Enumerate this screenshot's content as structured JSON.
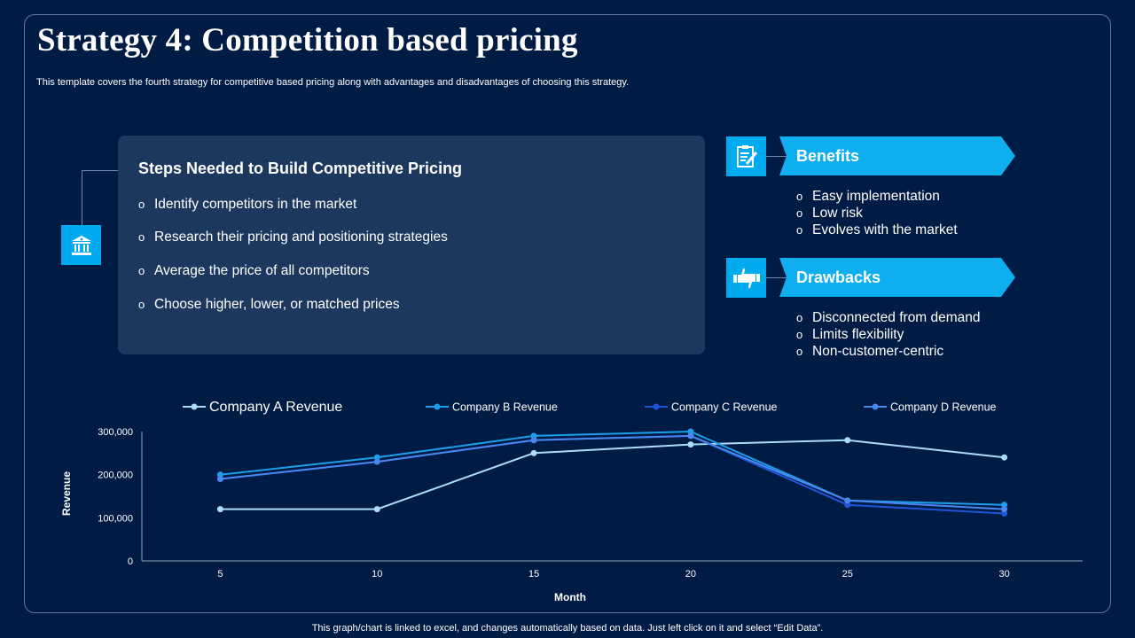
{
  "header": {
    "title": "Strategy 4: Competition based pricing",
    "subtitle": "This template covers the fourth strategy for competitive based pricing along with advantages and disadvantages of choosing this strategy."
  },
  "steps": {
    "title": "Steps Needed to Build Competitive Pricing",
    "bullet": "o",
    "items": [
      "Identify  competitors in the market",
      "Research their pricing and positioning strategies",
      "Average the price of all competitors",
      "Choose higher,  lower, or matched prices"
    ]
  },
  "benefits": {
    "label": "Benefits",
    "items": [
      "Easy implementation",
      "Low risk",
      "Evolves with the market"
    ]
  },
  "drawbacks": {
    "label": "Drawbacks",
    "items": [
      "Disconnected from demand",
      "Limits flexibility",
      "Non-customer-centric"
    ]
  },
  "icons": {
    "bank": "bank-icon",
    "benefits": "checklist-icon",
    "drawbacks": "thumbs-up-down-icon"
  },
  "colors": {
    "background": "#001b44",
    "accent": "#00aaee",
    "panel": "#1d385f",
    "series_a": "#a9dcf7",
    "series_b": "#1aa0ea",
    "series_c": "#1e56d8",
    "series_d": "#4a86f0"
  },
  "chart_data": {
    "type": "line",
    "x": [
      5,
      10,
      15,
      20,
      25,
      30
    ],
    "series": [
      {
        "name": "Company A Revenue",
        "values": [
          120000,
          120000,
          250000,
          270000,
          280000,
          240000
        ]
      },
      {
        "name": "Company B Revenue",
        "values": [
          200000,
          240000,
          290000,
          300000,
          140000,
          130000
        ]
      },
      {
        "name": "Company C Revenue",
        "values": [
          190000,
          230000,
          280000,
          290000,
          130000,
          110000
        ]
      },
      {
        "name": "Company D Revenue",
        "values": [
          190000,
          230000,
          280000,
          290000,
          140000,
          120000
        ]
      }
    ],
    "y_ticks": [
      "0",
      "100,000",
      "200,000",
      "300,000"
    ],
    "x_ticks": [
      "5",
      "10",
      "15",
      "20",
      "25",
      "30"
    ],
    "xlabel": "Month",
    "ylabel": "Revenue",
    "ylim": [
      0,
      300000
    ],
    "legend": "top"
  },
  "footnote": "This graph/chart is linked to excel,  and changes automatically based on data. Just left click on it and select “Edit Data”."
}
